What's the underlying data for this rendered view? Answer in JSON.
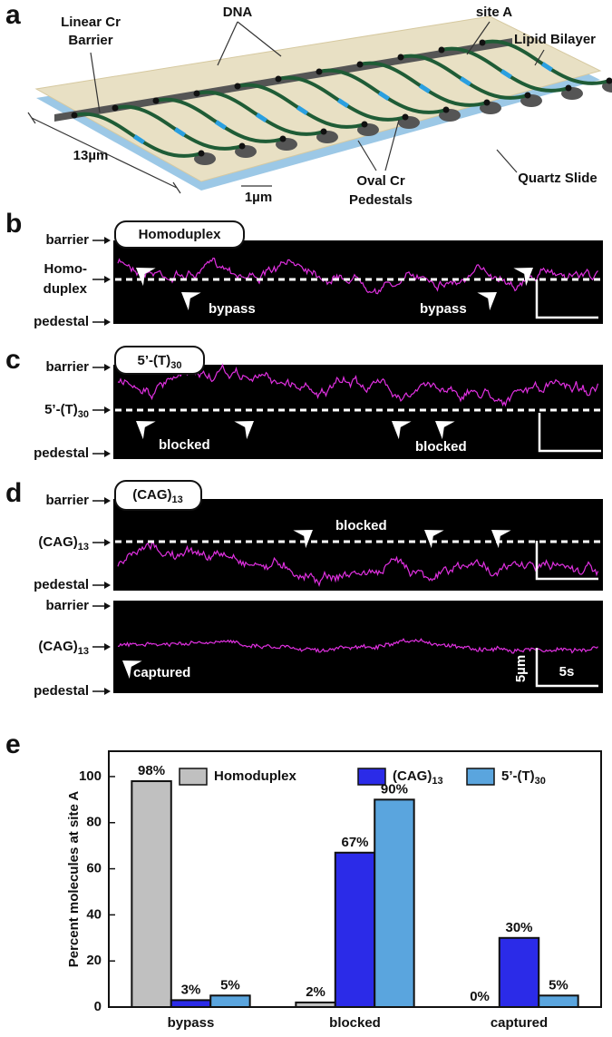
{
  "panel_a": {
    "letter": "a",
    "barrier_label": [
      "Linear Cr",
      "Barrier"
    ],
    "dna_label": "DNA",
    "site_label": "site A",
    "bilayer_label": "Lipid Bilayer",
    "scale_large": "13µm",
    "scale_small": "1µm",
    "pedestal_label": [
      "Oval Cr",
      "Pedestals"
    ],
    "slide_label": "Quartz Slide"
  },
  "panel_b": {
    "letter": "b",
    "tag": "Homoduplex",
    "axis_labels": {
      "top": "barrier",
      "middle": [
        "Homo-",
        "duplex"
      ],
      "bottom": "pedestal"
    },
    "annotations": [
      "bypass",
      "bypass"
    ]
  },
  "panel_c": {
    "letter": "c",
    "tag": {
      "text": "5’-(T)",
      "sub": "30"
    },
    "axis_labels": {
      "top": "barrier",
      "middle": {
        "text": "5’-(T)",
        "sub": "30"
      },
      "bottom": "pedestal"
    },
    "annotations": [
      "blocked",
      "blocked"
    ]
  },
  "panel_d": {
    "letter": "d",
    "tag": {
      "text": "(CAG)",
      "sub": "13"
    },
    "axis_labels": {
      "top": "barrier",
      "middle": {
        "text": "(CAG)",
        "sub": "13"
      },
      "bottom": "pedestal"
    },
    "annotations": [
      "blocked"
    ],
    "kymograph_2": {
      "axis_labels": {
        "top": "barrier",
        "middle": {
          "text": "(CAG)",
          "sub": "13"
        },
        "bottom": "pedestal"
      },
      "annotation": "captured",
      "scale_y": "5µm",
      "scale_x": "5s"
    }
  },
  "panel_e": {
    "letter": "e"
  },
  "chart_data": {
    "type": "bar",
    "ylabel": "Percent molecules at site A",
    "categories": [
      "bypass",
      "blocked",
      "captured"
    ],
    "series": [
      {
        "name": "Homoduplex",
        "color": "#c0c0c0",
        "values": [
          98,
          2,
          0
        ],
        "value_labels": [
          "98%",
          "2%",
          "0%"
        ]
      },
      {
        "name": "(CAG)",
        "name_sub": "13",
        "color": "#2b2be8",
        "values": [
          3,
          67,
          30
        ],
        "value_labels": [
          "3%",
          "67%",
          "30%"
        ]
      },
      {
        "name": "5’-(T)",
        "name_sub": "30",
        "color": "#5aa5de",
        "values": [
          5,
          90,
          5
        ],
        "value_labels": [
          "5%",
          "90%",
          "5%"
        ]
      }
    ],
    "ylim": [
      0,
      111
    ],
    "yticks": [
      0,
      20,
      40,
      60,
      80,
      100
    ],
    "grid": false,
    "legend": "top"
  }
}
